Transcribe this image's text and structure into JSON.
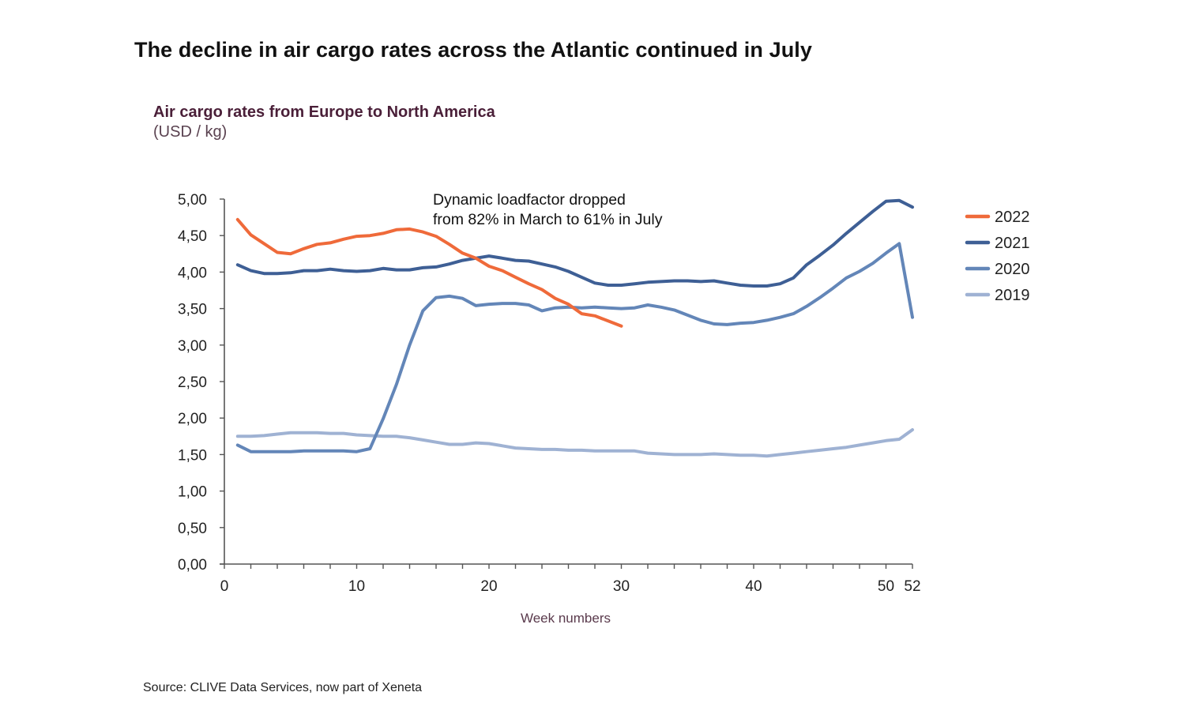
{
  "page": {
    "title": "The decline in air cargo rates across the Atlantic continued in July",
    "source": "Source: CLIVE Data Services, now part of Xeneta"
  },
  "chart_data": {
    "type": "line",
    "title": "Air cargo rates from Europe to North America",
    "subtitle": "(USD / kg)",
    "xlabel": "Week numbers",
    "ylabel": "USD / kg",
    "xlim": [
      0,
      52
    ],
    "ylim": [
      0,
      5
    ],
    "x_ticks": [
      0,
      10,
      20,
      30,
      40,
      50,
      52
    ],
    "x_minor_step": 2,
    "y_ticks": [
      {
        "value": 0,
        "label": "0,00"
      },
      {
        "value": 0.5,
        "label": "0,50"
      },
      {
        "value": 1,
        "label": "1,00"
      },
      {
        "value": 1.5,
        "label": "1,50"
      },
      {
        "value": 2,
        "label": "2,00"
      },
      {
        "value": 2.5,
        "label": "2,50"
      },
      {
        "value": 3,
        "label": "3,00"
      },
      {
        "value": 3.5,
        "label": "3,50"
      },
      {
        "value": 4,
        "label": "4,00"
      },
      {
        "value": 4.5,
        "label": "4,50"
      },
      {
        "value": 5,
        "label": "5,00"
      }
    ],
    "grid": false,
    "legend_position": "right",
    "annotation": {
      "lines": [
        "Dynamic loadfactor dropped",
        "from 82% in March to 61% in July"
      ],
      "x": 16,
      "y": 5.0
    },
    "series": [
      {
        "name": "2022",
        "color": "#ef6a3a",
        "x": [
          1,
          2,
          3,
          4,
          5,
          6,
          7,
          8,
          9,
          10,
          11,
          12,
          13,
          14,
          15,
          16,
          17,
          18,
          19,
          20,
          21,
          22,
          23,
          24,
          25,
          26,
          27,
          28,
          29,
          30
        ],
        "values": [
          4.72,
          4.51,
          4.39,
          4.27,
          4.25,
          4.32,
          4.38,
          4.4,
          4.45,
          4.49,
          4.5,
          4.53,
          4.58,
          4.59,
          4.55,
          4.49,
          4.38,
          4.26,
          4.19,
          4.08,
          4.02,
          3.93,
          3.84,
          3.76,
          3.64,
          3.56,
          3.43,
          3.4,
          3.33,
          3.26
        ]
      },
      {
        "name": "2021",
        "color": "#3e5f95",
        "x": [
          1,
          2,
          3,
          4,
          5,
          6,
          7,
          8,
          9,
          10,
          11,
          12,
          13,
          14,
          15,
          16,
          17,
          18,
          19,
          20,
          21,
          22,
          23,
          24,
          25,
          26,
          27,
          28,
          29,
          30,
          31,
          32,
          33,
          34,
          35,
          36,
          37,
          38,
          39,
          40,
          41,
          42,
          43,
          44,
          45,
          46,
          47,
          48,
          49,
          50,
          51,
          52
        ],
        "values": [
          4.1,
          4.02,
          3.98,
          3.98,
          3.99,
          4.02,
          4.02,
          4.04,
          4.02,
          4.01,
          4.02,
          4.05,
          4.03,
          4.03,
          4.06,
          4.07,
          4.11,
          4.16,
          4.19,
          4.22,
          4.19,
          4.16,
          4.15,
          4.11,
          4.07,
          4.01,
          3.93,
          3.85,
          3.82,
          3.82,
          3.84,
          3.86,
          3.87,
          3.88,
          3.88,
          3.87,
          3.88,
          3.85,
          3.82,
          3.81,
          3.81,
          3.84,
          3.92,
          4.1,
          4.23,
          4.37,
          4.53,
          4.68,
          4.83,
          4.97,
          4.98,
          4.89
        ]
      },
      {
        "name": "2020",
        "color": "#6386b8",
        "x": [
          1,
          2,
          3,
          4,
          5,
          6,
          7,
          8,
          9,
          10,
          11,
          12,
          13,
          14,
          15,
          16,
          17,
          18,
          19,
          20,
          21,
          22,
          23,
          24,
          25,
          26,
          27,
          28,
          29,
          30,
          31,
          32,
          33,
          34,
          35,
          36,
          37,
          38,
          39,
          40,
          41,
          42,
          43,
          44,
          45,
          46,
          47,
          48,
          49,
          50,
          51,
          52
        ],
        "values": [
          1.63,
          1.54,
          1.54,
          1.54,
          1.54,
          1.55,
          1.55,
          1.55,
          1.55,
          1.54,
          1.58,
          1.99,
          2.46,
          3.0,
          3.47,
          3.65,
          3.67,
          3.64,
          3.54,
          3.56,
          3.57,
          3.57,
          3.55,
          3.47,
          3.51,
          3.52,
          3.51,
          3.52,
          3.51,
          3.5,
          3.51,
          3.55,
          3.52,
          3.48,
          3.41,
          3.34,
          3.29,
          3.28,
          3.3,
          3.31,
          3.34,
          3.38,
          3.43,
          3.53,
          3.65,
          3.78,
          3.92,
          4.01,
          4.12,
          4.26,
          4.39,
          3.38
        ]
      },
      {
        "name": "2019",
        "color": "#9fb2d3",
        "x": [
          1,
          2,
          3,
          4,
          5,
          6,
          7,
          8,
          9,
          10,
          11,
          12,
          13,
          14,
          15,
          16,
          17,
          18,
          19,
          20,
          21,
          22,
          23,
          24,
          25,
          26,
          27,
          28,
          29,
          30,
          31,
          32,
          33,
          34,
          35,
          36,
          37,
          38,
          39,
          40,
          41,
          42,
          43,
          44,
          45,
          46,
          47,
          48,
          49,
          50,
          51,
          52
        ],
        "values": [
          1.75,
          1.75,
          1.76,
          1.78,
          1.8,
          1.8,
          1.8,
          1.79,
          1.79,
          1.77,
          1.76,
          1.75,
          1.75,
          1.73,
          1.7,
          1.67,
          1.64,
          1.64,
          1.66,
          1.65,
          1.62,
          1.59,
          1.58,
          1.57,
          1.57,
          1.56,
          1.56,
          1.55,
          1.55,
          1.55,
          1.55,
          1.52,
          1.51,
          1.5,
          1.5,
          1.5,
          1.51,
          1.5,
          1.49,
          1.49,
          1.48,
          1.5,
          1.52,
          1.54,
          1.56,
          1.58,
          1.6,
          1.63,
          1.66,
          1.69,
          1.71,
          1.84
        ]
      }
    ]
  }
}
